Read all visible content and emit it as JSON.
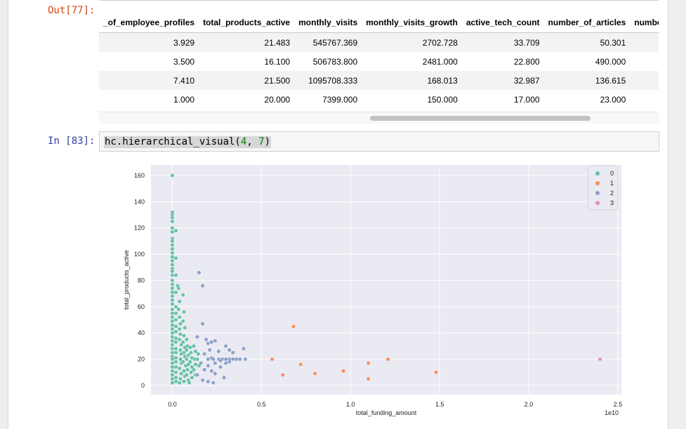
{
  "notebook": {
    "out_prompt": "Out[77]:",
    "in_prompt": "In [83]:"
  },
  "table": {
    "headers": [
      "_of_employee_profiles",
      "total_products_active",
      "monthly_visits",
      "monthly_visits_growth",
      "active_tech_count",
      "number_of_articles",
      "number_c"
    ],
    "rows": [
      [
        "3.929",
        "21.483",
        "545767.369",
        "2702.728",
        "33.709",
        "50.301",
        ""
      ],
      [
        "3.500",
        "16.100",
        "506783.800",
        "2481.000",
        "22.800",
        "490.000",
        ""
      ],
      [
        "7.410",
        "21.500",
        "1095708.333",
        "168.013",
        "32.987",
        "136.615",
        ""
      ],
      [
        "1.000",
        "20.000",
        "7399.000",
        "150.000",
        "17.000",
        "23.000",
        ""
      ]
    ]
  },
  "code_cell": {
    "fn": "hc.hierarchical_visual(",
    "arg1": "4",
    "sep": ", ",
    "arg2": "7",
    "close": ")"
  },
  "colors": {
    "cluster_0": "#66c2a5",
    "cluster_1": "#fc8d62",
    "cluster_2": "#8da0cb",
    "cluster_3": "#e78ac3",
    "plot_bg": "#eaeaf2"
  },
  "chart_data": {
    "type": "scatter",
    "xlabel": "total_funding_amount",
    "ylabel": "total_products_active",
    "x_offset_label": "1e10",
    "xlim": [
      -0.12,
      2.52
    ],
    "ylim": [
      -7,
      168
    ],
    "x_ticks": [
      0.0,
      0.5,
      1.0,
      1.5,
      2.0,
      2.5
    ],
    "x_tick_labels": [
      "0.0",
      "0.5",
      "1.0",
      "1.5",
      "2.0",
      "2.5"
    ],
    "y_ticks": [
      0,
      20,
      40,
      60,
      80,
      100,
      120,
      140,
      160
    ],
    "y_tick_labels": [
      "0",
      "20",
      "40",
      "60",
      "80",
      "100",
      "120",
      "140",
      "160"
    ],
    "grid": true,
    "legend_position": "top-right",
    "series": [
      {
        "name": "0",
        "color": "#66c2a5",
        "points": [
          [
            0.0,
            160
          ],
          [
            0.0,
            132
          ],
          [
            0.0,
            130
          ],
          [
            0.0,
            128
          ],
          [
            0.0,
            125
          ],
          [
            0.0,
            120
          ],
          [
            0.0,
            117
          ],
          [
            0.0,
            112
          ],
          [
            0.0,
            110
          ],
          [
            0.0,
            107
          ],
          [
            0.0,
            104
          ],
          [
            0.0,
            101
          ],
          [
            0.0,
            98
          ],
          [
            0.0,
            95
          ],
          [
            0.0,
            92
          ],
          [
            0.0,
            89
          ],
          [
            0.0,
            87
          ],
          [
            0.0,
            84
          ],
          [
            0.0,
            80
          ],
          [
            0.0,
            77
          ],
          [
            0.0,
            74
          ],
          [
            0.0,
            71
          ],
          [
            0.0,
            68
          ],
          [
            0.0,
            65
          ],
          [
            0.0,
            62
          ],
          [
            0.0,
            58
          ],
          [
            0.0,
            55
          ],
          [
            0.0,
            52
          ],
          [
            0.0,
            49
          ],
          [
            0.0,
            46
          ],
          [
            0.0,
            43
          ],
          [
            0.0,
            40
          ],
          [
            0.0,
            37
          ],
          [
            0.0,
            34
          ],
          [
            0.0,
            31
          ],
          [
            0.0,
            28
          ],
          [
            0.0,
            25
          ],
          [
            0.0,
            22
          ],
          [
            0.0,
            20
          ],
          [
            0.0,
            17
          ],
          [
            0.0,
            14
          ],
          [
            0.0,
            11
          ],
          [
            0.0,
            8
          ],
          [
            0.0,
            5
          ],
          [
            0.0,
            2
          ],
          [
            0.02,
            118
          ],
          [
            0.02,
            97
          ],
          [
            0.02,
            84
          ],
          [
            0.02,
            71
          ],
          [
            0.02,
            60
          ],
          [
            0.02,
            55
          ],
          [
            0.02,
            50
          ],
          [
            0.02,
            45
          ],
          [
            0.02,
            41
          ],
          [
            0.02,
            36
          ],
          [
            0.02,
            33
          ],
          [
            0.02,
            28
          ],
          [
            0.02,
            25
          ],
          [
            0.02,
            21
          ],
          [
            0.02,
            18
          ],
          [
            0.02,
            14
          ],
          [
            0.02,
            10
          ],
          [
            0.02,
            6
          ],
          [
            0.02,
            3
          ],
          [
            0.03,
            76
          ],
          [
            0.035,
            74
          ],
          [
            0.04,
            64
          ],
          [
            0.035,
            58
          ],
          [
            0.04,
            52
          ],
          [
            0.045,
            47
          ],
          [
            0.04,
            43
          ],
          [
            0.045,
            39
          ],
          [
            0.04,
            35
          ],
          [
            0.05,
            31
          ],
          [
            0.045,
            27
          ],
          [
            0.05,
            24
          ],
          [
            0.045,
            20
          ],
          [
            0.05,
            17
          ],
          [
            0.04,
            13
          ],
          [
            0.05,
            9
          ],
          [
            0.045,
            5
          ],
          [
            0.04,
            2
          ],
          [
            0.06,
            69
          ],
          [
            0.065,
            56
          ],
          [
            0.06,
            49
          ],
          [
            0.07,
            44
          ],
          [
            0.065,
            38
          ],
          [
            0.06,
            33
          ],
          [
            0.07,
            29
          ],
          [
            0.065,
            25
          ],
          [
            0.07,
            22
          ],
          [
            0.06,
            18
          ],
          [
            0.075,
            15
          ],
          [
            0.065,
            11
          ],
          [
            0.07,
            7
          ],
          [
            0.065,
            3
          ],
          [
            0.08,
            35
          ],
          [
            0.085,
            30
          ],
          [
            0.08,
            27
          ],
          [
            0.09,
            23
          ],
          [
            0.08,
            20
          ],
          [
            0.09,
            16
          ],
          [
            0.085,
            12
          ],
          [
            0.08,
            8
          ],
          [
            0.09,
            4
          ],
          [
            0.095,
            2
          ],
          [
            0.1,
            29
          ],
          [
            0.105,
            25
          ],
          [
            0.11,
            21
          ],
          [
            0.1,
            18
          ],
          [
            0.11,
            14
          ],
          [
            0.105,
            10
          ],
          [
            0.11,
            6
          ],
          [
            0.12,
            30
          ],
          [
            0.13,
            26
          ],
          [
            0.125,
            20
          ],
          [
            0.13,
            16
          ],
          [
            0.12,
            12
          ],
          [
            0.13,
            8
          ],
          [
            0.14,
            20
          ],
          [
            0.15,
            15
          ],
          [
            0.145,
            24
          ]
        ]
      },
      {
        "name": "1",
        "color": "#fc8d62",
        "points": [
          [
            0.56,
            20
          ],
          [
            0.62,
            8
          ],
          [
            0.68,
            45
          ],
          [
            0.72,
            16
          ],
          [
            0.8,
            9
          ],
          [
            0.96,
            11
          ],
          [
            1.1,
            17
          ],
          [
            1.1,
            5
          ],
          [
            1.21,
            20
          ],
          [
            1.48,
            10
          ]
        ]
      },
      {
        "name": "2",
        "color": "#8da0cb",
        "points": [
          [
            0.15,
            86
          ],
          [
            0.17,
            76
          ],
          [
            0.17,
            47
          ],
          [
            0.14,
            37
          ],
          [
            0.19,
            35
          ],
          [
            0.2,
            32
          ],
          [
            0.22,
            33
          ],
          [
            0.24,
            34
          ],
          [
            0.21,
            27
          ],
          [
            0.22,
            21
          ],
          [
            0.18,
            24
          ],
          [
            0.26,
            26
          ],
          [
            0.3,
            30
          ],
          [
            0.32,
            27
          ],
          [
            0.34,
            25
          ],
          [
            0.4,
            28
          ],
          [
            0.41,
            20
          ],
          [
            0.2,
            20
          ],
          [
            0.23,
            20
          ],
          [
            0.26,
            20
          ],
          [
            0.28,
            20
          ],
          [
            0.3,
            20
          ],
          [
            0.32,
            20
          ],
          [
            0.34,
            20
          ],
          [
            0.36,
            20
          ],
          [
            0.38,
            20
          ],
          [
            0.18,
            12
          ],
          [
            0.2,
            15
          ],
          [
            0.22,
            11
          ],
          [
            0.24,
            9
          ],
          [
            0.27,
            14
          ],
          [
            0.3,
            17
          ],
          [
            0.32,
            18
          ],
          [
            0.2,
            3
          ],
          [
            0.23,
            2
          ],
          [
            0.17,
            4
          ],
          [
            0.29,
            6
          ],
          [
            0.14,
            8
          ],
          [
            0.16,
            17
          ],
          [
            0.24,
            17
          ],
          [
            0.27,
            19
          ]
        ]
      },
      {
        "name": "3",
        "color": "#e78ac3",
        "points": [
          [
            2.4,
            20
          ]
        ]
      }
    ]
  }
}
